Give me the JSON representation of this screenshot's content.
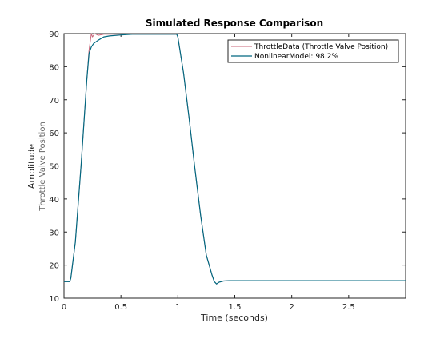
{
  "chart_data": {
    "type": "line",
    "title": "Simulated Response Comparison",
    "xlabel": "Time (seconds)",
    "ylabel": "Amplitude",
    "ylabel_sub": "Throttle Valve Position",
    "xlim": [
      0,
      3
    ],
    "ylim": [
      10,
      90
    ],
    "xticks": [
      0,
      0.5,
      1,
      1.5,
      2,
      2.5
    ],
    "xtick_labels": [
      "0",
      "0.5",
      "1",
      "1.5",
      "2",
      "2.5"
    ],
    "yticks": [
      10,
      20,
      30,
      40,
      50,
      60,
      70,
      80,
      90
    ],
    "ytick_labels": [
      "10",
      "20",
      "30",
      "40",
      "50",
      "60",
      "70",
      "80",
      "90"
    ],
    "grid": false,
    "legend_position": "top-right",
    "series": [
      {
        "name": "ThrottleData (Throttle Valve Position)",
        "color": "#c86478",
        "x": [
          0,
          0.05,
          0.06,
          0.1,
          0.15,
          0.2,
          0.22,
          0.24,
          0.25,
          0.27,
          0.3,
          0.35,
          0.5,
          0.8,
          0.99,
          1.0,
          1.05,
          1.1,
          1.15,
          1.2,
          1.25,
          1.3,
          1.32,
          1.34,
          1.36,
          1.4,
          1.45,
          1.6,
          2.0,
          2.5,
          3.0
        ],
        "y": [
          15,
          15,
          16,
          27,
          50,
          76,
          85,
          90,
          89,
          90,
          89.5,
          89.8,
          89.8,
          89.8,
          89.8,
          89,
          78,
          64,
          49,
          35,
          23,
          17,
          15,
          14.3,
          14.8,
          15.2,
          15.3,
          15.3,
          15.3,
          15.3,
          15.3
        ]
      },
      {
        "name": "NonlinearModel: 98.2%",
        "color": "#006880",
        "x": [
          0,
          0.05,
          0.06,
          0.1,
          0.15,
          0.2,
          0.22,
          0.24,
          0.26,
          0.3,
          0.35,
          0.4,
          0.5,
          0.6,
          0.8,
          0.99,
          1.0,
          1.05,
          1.1,
          1.15,
          1.2,
          1.25,
          1.3,
          1.32,
          1.34,
          1.36,
          1.4,
          1.45,
          1.6,
          2.0,
          2.5,
          3.0
        ],
        "y": [
          15,
          15,
          16,
          27,
          50,
          76,
          84,
          86,
          87,
          88,
          89,
          89.3,
          89.6,
          89.8,
          89.8,
          89.8,
          89,
          78,
          64,
          49,
          35,
          23,
          17,
          15,
          14.3,
          14.8,
          15.2,
          15.3,
          15.3,
          15.3,
          15.3,
          15.3
        ]
      }
    ]
  }
}
